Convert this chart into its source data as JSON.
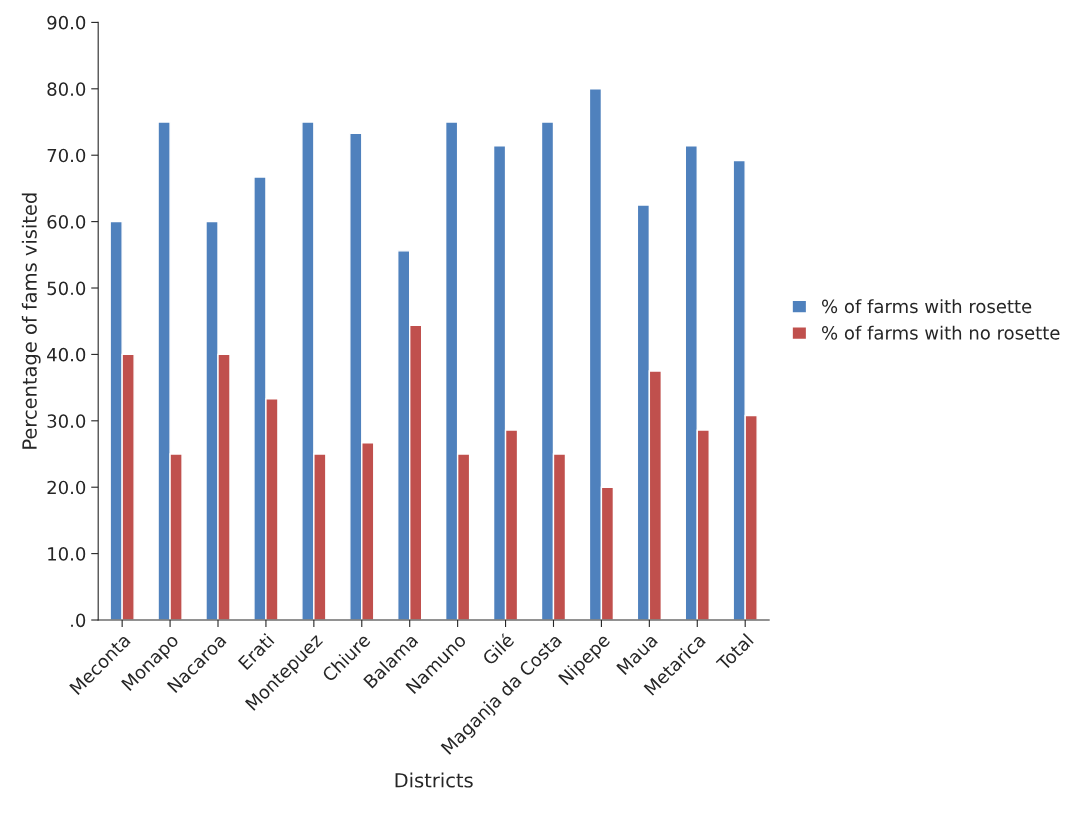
{
  "chart_data": {
    "type": "bar",
    "xlabel": "Districts",
    "ylabel": "Percentage of fams visited",
    "categories": [
      "Meconta",
      "Monapo",
      "Nacaroa",
      "Erati",
      "Montepuez",
      "Chiure",
      "Balama",
      "Namuno",
      "Gilé",
      "Maganja da Costa",
      "Nipepe",
      "Maua",
      "Metarica",
      "Total"
    ],
    "series": [
      {
        "name": "% of farms with rosette",
        "color": "#4f81bd",
        "values": [
          60.0,
          75.0,
          60.0,
          66.7,
          75.0,
          73.3,
          55.6,
          75.0,
          71.4,
          75.0,
          80.0,
          62.5,
          71.4,
          69.2
        ]
      },
      {
        "name": "% of farms with no rosette",
        "color": "#c0504d",
        "values": [
          40.0,
          25.0,
          40.0,
          33.3,
          25.0,
          26.7,
          44.4,
          25.0,
          28.6,
          25.0,
          20.0,
          37.5,
          28.6,
          30.8
        ]
      }
    ],
    "ylim": [
      0,
      90
    ],
    "yticks": [
      {
        "value": 0,
        "label": ".0"
      },
      {
        "value": 10,
        "label": "10.0"
      },
      {
        "value": 20,
        "label": "20.0"
      },
      {
        "value": 30,
        "label": "30.0"
      },
      {
        "value": 40,
        "label": "40.0"
      },
      {
        "value": 50,
        "label": "50.0"
      },
      {
        "value": 60,
        "label": "60.0"
      },
      {
        "value": 70,
        "label": "70.0"
      },
      {
        "value": 80,
        "label": "80.0"
      },
      {
        "value": 90,
        "label": "90.0"
      }
    ],
    "grid": false,
    "legend": "right"
  }
}
